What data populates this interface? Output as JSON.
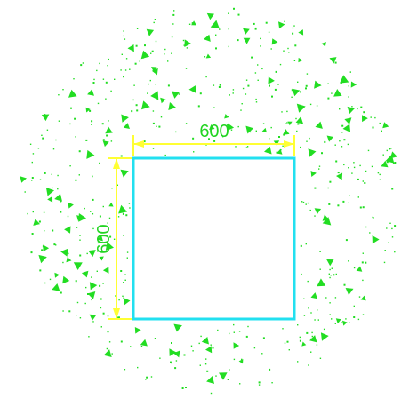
{
  "drawing": {
    "square": {
      "stroke_color": "#22E0F0"
    },
    "dimensions": {
      "horizontal": {
        "value": "600",
        "line_color": "#FFFF33",
        "text_color": "#22D422"
      },
      "vertical": {
        "value": "600",
        "line_color": "#FFFF33",
        "text_color": "#22D422"
      }
    },
    "gravel_hatch": {
      "color": "#22DD22",
      "shape": "circular-scatter"
    }
  }
}
